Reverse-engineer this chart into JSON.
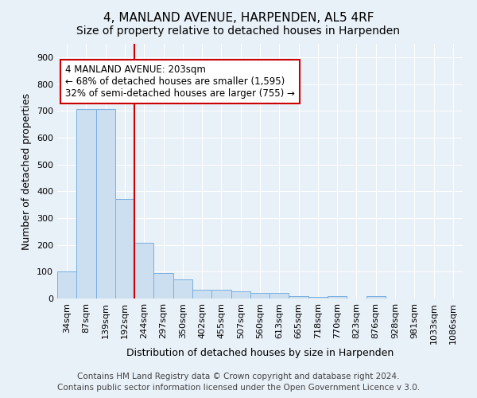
{
  "title": "4, MANLAND AVENUE, HARPENDEN, AL5 4RF",
  "subtitle": "Size of property relative to detached houses in Harpenden",
  "xlabel": "Distribution of detached houses by size in Harpenden",
  "ylabel": "Number of detached properties",
  "bar_labels": [
    "34sqm",
    "87sqm",
    "139sqm",
    "192sqm",
    "244sqm",
    "297sqm",
    "350sqm",
    "402sqm",
    "455sqm",
    "507sqm",
    "560sqm",
    "613sqm",
    "665sqm",
    "718sqm",
    "770sqm",
    "823sqm",
    "876sqm",
    "928sqm",
    "981sqm",
    "1033sqm",
    "1086sqm"
  ],
  "bar_values": [
    100,
    708,
    708,
    370,
    208,
    95,
    70,
    33,
    33,
    27,
    22,
    22,
    10,
    5,
    10,
    0,
    8,
    0,
    0,
    0,
    0
  ],
  "bar_color": "#ccdff0",
  "bar_edgecolor": "#7aafe0",
  "vline_x": 3.5,
  "vline_color": "#cc0000",
  "annotation_text": "4 MANLAND AVENUE: 203sqm\n← 68% of detached houses are smaller (1,595)\n32% of semi-detached houses are larger (755) →",
  "annotation_box_color": "white",
  "annotation_box_edgecolor": "#cc0000",
  "ylim": [
    0,
    950
  ],
  "yticks": [
    0,
    100,
    200,
    300,
    400,
    500,
    600,
    700,
    800,
    900
  ],
  "footer_line1": "Contains HM Land Registry data © Crown copyright and database right 2024.",
  "footer_line2": "Contains public sector information licensed under the Open Government Licence v 3.0.",
  "background_color": "#e8f0f8",
  "plot_bg_color": "#e8f0f8",
  "grid_color": "#ffffff",
  "title_fontsize": 11,
  "subtitle_fontsize": 10,
  "axis_label_fontsize": 9,
  "tick_fontsize": 8,
  "annotation_fontsize": 8.5,
  "footer_fontsize": 7.5
}
